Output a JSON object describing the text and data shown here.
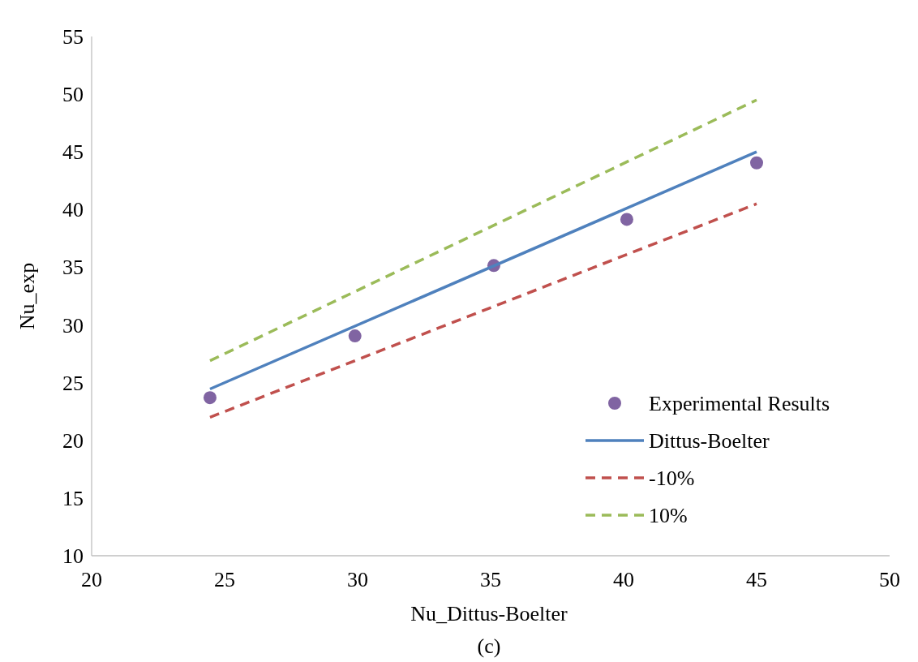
{
  "chart_data": {
    "type": "scatter",
    "xlabel": "Nu_Dittus-Boelter",
    "ylabel": "Nu_exp",
    "annotations": [
      "(c)"
    ],
    "xlim": [
      20,
      50
    ],
    "xticks": [
      20,
      25,
      30,
      35,
      40,
      45,
      50
    ],
    "ylim": [
      10,
      55
    ],
    "yticks": [
      10,
      15,
      20,
      25,
      30,
      35,
      40,
      45,
      50,
      55
    ],
    "grid": false,
    "legend": "bottom right",
    "series": [
      {
        "name": "Experimental Results",
        "color": "#8064a2",
        "marker": "circle",
        "x": [
          24.45,
          29.9,
          35.12,
          40.12,
          45.0
        ],
        "values": [
          23.7,
          29.05,
          35.15,
          39.15,
          44.05
        ]
      },
      {
        "name": "Dittus-Boelter",
        "type": "line",
        "color": "#4f81bd",
        "line_style": "solid",
        "x": [
          24.45,
          45.0
        ],
        "values": [
          24.45,
          45.0
        ]
      },
      {
        "name": "-10%",
        "type": "line",
        "color": "#c0504d",
        "line_style": "dashed",
        "x": [
          24.45,
          45.0
        ],
        "values": [
          22.0,
          40.5
        ]
      },
      {
        "name": "10%",
        "type": "line",
        "color": "#9bbb59",
        "line_style": "dashed",
        "x": [
          24.45,
          45.0
        ],
        "values": [
          26.9,
          49.5
        ]
      }
    ]
  }
}
